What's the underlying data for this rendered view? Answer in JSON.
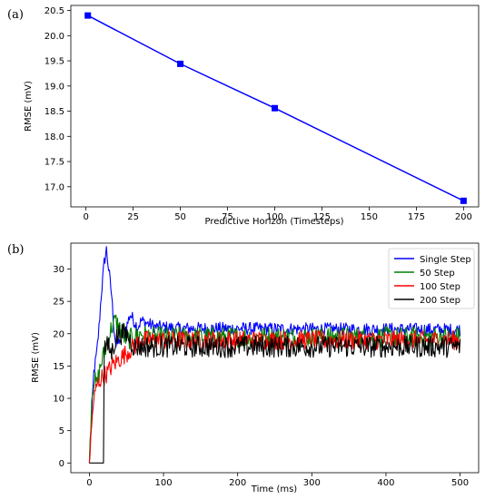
{
  "chart_data": [
    {
      "panel_label": "(a)",
      "type": "line",
      "xlabel": "Predictive Horizon (Timesteps)",
      "ylabel": "RMSE (mV)",
      "xlim": [
        -8,
        208
      ],
      "ylim": [
        16.6,
        20.6
      ],
      "xticks": [
        0,
        25,
        50,
        75,
        100,
        125,
        150,
        175,
        200
      ],
      "yticks": [
        17.0,
        17.5,
        18.0,
        18.5,
        19.0,
        19.5,
        20.0,
        20.5
      ],
      "ytick_decimals": 1,
      "grid": false,
      "series": [
        {
          "color": "#0000ff",
          "marker": "square",
          "x": [
            1,
            50,
            100,
            200
          ],
          "y": [
            20.4,
            19.44,
            18.56,
            16.72
          ]
        }
      ]
    },
    {
      "panel_label": "(b)",
      "type": "line",
      "xlabel": "Time (ms)",
      "ylabel": "RMSE (mV)",
      "xlim": [
        -25,
        525
      ],
      "ylim": [
        -1.5,
        34
      ],
      "xticks": [
        0,
        100,
        200,
        300,
        400,
        500
      ],
      "yticks": [
        0,
        5,
        10,
        15,
        20,
        25,
        30
      ],
      "ytick_decimals": 0,
      "grid": false,
      "legend_position": "top-right",
      "series": [
        {
          "name": "Single Step",
          "color": "#0000ff",
          "x": [
            0,
            3,
            6,
            10,
            13,
            16,
            20,
            23,
            26,
            30,
            33,
            36,
            40,
            45,
            50,
            55,
            60,
            65,
            70,
            80,
            90,
            100,
            120,
            150,
            200,
            300,
            400,
            500
          ],
          "y": [
            0,
            7,
            14,
            17,
            21,
            26,
            31,
            33,
            30,
            26,
            21,
            18,
            19,
            20,
            21,
            23,
            22,
            21,
            22,
            21.5,
            21,
            21,
            20.8,
            20.8,
            20.8,
            20.7,
            20.7,
            20.6
          ],
          "noise": 1.0
        },
        {
          "name": "50 Step",
          "color": "#008000",
          "x": [
            0,
            3,
            6,
            10,
            15,
            20,
            25,
            30,
            35,
            40,
            45,
            50,
            60,
            70,
            80,
            100,
            150,
            200,
            300,
            400,
            500
          ],
          "y": [
            0,
            10,
            13,
            12,
            15,
            17,
            19,
            21,
            22,
            21,
            20,
            19,
            19.5,
            20,
            19.5,
            19.5,
            19.5,
            19.5,
            19.5,
            19.5,
            19.5
          ],
          "noise": 1.6
        },
        {
          "name": "100 Step",
          "color": "#ff0000",
          "x": [
            0,
            5,
            10,
            15,
            20,
            25,
            30,
            40,
            50,
            60,
            70,
            80,
            90,
            100,
            150,
            200,
            300,
            400,
            500
          ],
          "y": [
            0,
            9,
            12,
            13,
            13.5,
            14,
            15,
            16,
            17,
            18,
            19,
            19,
            19,
            19,
            19,
            19,
            19,
            19,
            19
          ],
          "noise": 1.5
        },
        {
          "name": "200 Step",
          "color": "#000000",
          "x": [
            0,
            19,
            19,
            25,
            30,
            35,
            40,
            50,
            60,
            70,
            100,
            150,
            200,
            300,
            400,
            500
          ],
          "y": [
            0,
            0,
            18,
            18,
            17,
            19,
            20,
            20,
            18,
            18,
            18,
            18,
            18,
            18,
            18,
            18
          ],
          "noise": 1.7
        }
      ]
    }
  ]
}
